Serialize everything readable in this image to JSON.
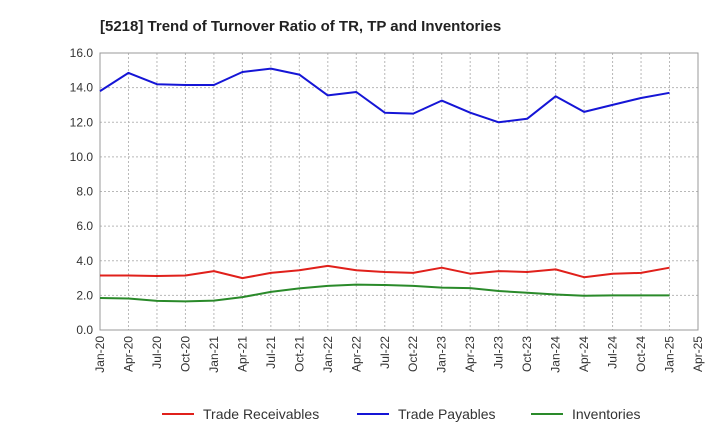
{
  "chart_data": {
    "type": "line",
    "title": "[5218]  Trend of Turnover Ratio of TR, TP and Inventories",
    "xlabel": "",
    "ylabel": "",
    "ylim": [
      0,
      16
    ],
    "yticks": [
      "0.0",
      "2.0",
      "4.0",
      "6.0",
      "8.0",
      "10.0",
      "12.0",
      "14.0",
      "16.0"
    ],
    "x_tick_labels": [
      "Jan-20",
      "Apr-20",
      "Jul-20",
      "Oct-20",
      "Jan-21",
      "Apr-21",
      "Jul-21",
      "Oct-21",
      "Jan-22",
      "Apr-22",
      "Jul-22",
      "Oct-22",
      "Jan-23",
      "Apr-23",
      "Jul-23",
      "Oct-23",
      "Jan-24",
      "Apr-24",
      "Jul-24",
      "Oct-24",
      "Jan-25",
      "Apr-25"
    ],
    "x": [
      "Jan-20",
      "Apr-20",
      "Jul-20",
      "Oct-20",
      "Jan-21",
      "Apr-21",
      "Jul-21",
      "Oct-21",
      "Jan-22",
      "Apr-22",
      "Jul-22",
      "Oct-22",
      "Jan-23",
      "Apr-23",
      "Jul-23",
      "Oct-23",
      "Jan-24",
      "Apr-24",
      "Jul-24",
      "Oct-24",
      "Jan-25"
    ],
    "grid": true,
    "legend_position": "bottom",
    "series": [
      {
        "name": "Trade Receivables",
        "color": "#e0201b",
        "values": [
          3.15,
          3.15,
          3.12,
          3.15,
          3.4,
          3.0,
          3.3,
          3.45,
          3.7,
          3.45,
          3.35,
          3.3,
          3.6,
          3.25,
          3.4,
          3.35,
          3.5,
          3.05,
          3.25,
          3.3,
          3.6
        ]
      },
      {
        "name": "Trade Payables",
        "color": "#1515d6",
        "values": [
          13.8,
          14.85,
          14.2,
          14.15,
          14.15,
          14.9,
          15.1,
          14.75,
          13.55,
          13.75,
          12.55,
          12.5,
          13.25,
          12.55,
          12.0,
          12.2,
          13.5,
          12.6,
          13.0,
          13.4,
          13.7
        ]
      },
      {
        "name": "Inventories",
        "color": "#2a8a2a",
        "values": [
          1.85,
          1.82,
          1.68,
          1.65,
          1.7,
          1.9,
          2.2,
          2.4,
          2.55,
          2.62,
          2.6,
          2.55,
          2.45,
          2.42,
          2.25,
          2.15,
          2.05,
          1.98,
          2.0,
          2.0,
          2.0
        ]
      }
    ]
  }
}
